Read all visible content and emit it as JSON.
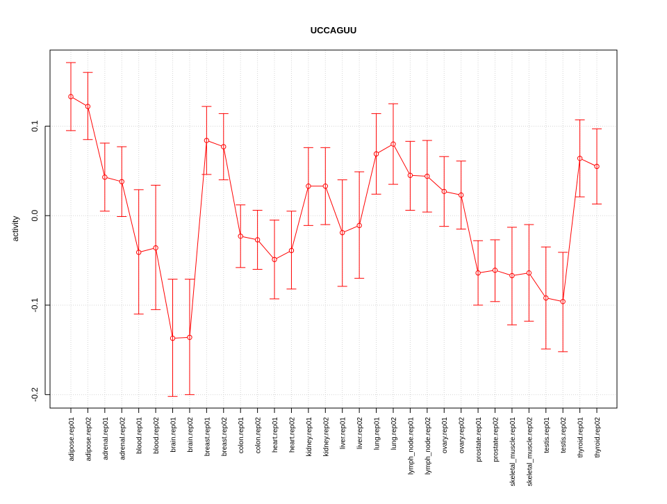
{
  "chart_data": {
    "type": "line",
    "title": "UCCAGUU",
    "xlabel": "",
    "ylabel": "activity",
    "ylim": [
      -0.215,
      0.185
    ],
    "yticks": [
      -0.2,
      -0.1,
      0.0,
      0.1
    ],
    "ytick_labels": [
      "-0.2",
      "-0.1",
      "0.0",
      "0.1"
    ],
    "grid": true,
    "legend": "none",
    "colors": {
      "series": "#ff0000",
      "grid": "#d3d3d3",
      "axis": "#000000"
    },
    "categories": [
      "adipose.rep01",
      "adipose.rep02",
      "adrenal.rep01",
      "adrenal.rep02",
      "blood.rep01",
      "blood.rep02",
      "brain.rep01",
      "brain.rep02",
      "breast.rep01",
      "breast.rep02",
      "colon.rep01",
      "colon.rep02",
      "heart.rep01",
      "heart.rep02",
      "kidney.rep01",
      "kidney.rep02",
      "liver.rep01",
      "liver.rep02",
      "lung.rep01",
      "lung.rep02",
      "lymph_node.rep01",
      "lymph_node.rep02",
      "ovary.rep01",
      "ovary.rep02",
      "prostate.rep01",
      "prostate.rep02",
      "skeletal_muscle.rep01",
      "skeletal_muscle.rep02",
      "testis.rep01",
      "testis.rep02",
      "thyroid.rep01",
      "thyroid.rep02"
    ],
    "values": [
      0.133,
      0.122,
      0.043,
      0.038,
      -0.041,
      -0.036,
      -0.137,
      -0.136,
      0.084,
      0.077,
      -0.023,
      -0.027,
      -0.049,
      -0.039,
      0.033,
      0.033,
      -0.019,
      -0.011,
      0.069,
      0.08,
      0.045,
      0.044,
      0.027,
      0.023,
      -0.064,
      -0.061,
      -0.067,
      -0.064,
      -0.092,
      -0.096,
      0.064,
      0.055
    ],
    "error_upper": [
      0.171,
      0.16,
      0.081,
      0.077,
      0.029,
      0.034,
      -0.071,
      -0.071,
      0.122,
      0.114,
      0.012,
      0.006,
      -0.005,
      0.005,
      0.076,
      0.076,
      0.04,
      0.049,
      0.114,
      0.125,
      0.083,
      0.084,
      0.066,
      0.061,
      -0.028,
      -0.027,
      -0.013,
      -0.01,
      -0.035,
      -0.041,
      0.107,
      0.097
    ],
    "error_lower": [
      0.095,
      0.085,
      0.005,
      -0.001,
      -0.11,
      -0.105,
      -0.202,
      -0.2,
      0.046,
      0.04,
      -0.058,
      -0.06,
      -0.093,
      -0.082,
      -0.011,
      -0.01,
      -0.079,
      -0.07,
      0.024,
      0.035,
      0.006,
      0.004,
      -0.012,
      -0.015,
      -0.1,
      -0.096,
      -0.122,
      -0.118,
      -0.149,
      -0.152,
      0.021,
      0.013
    ]
  }
}
